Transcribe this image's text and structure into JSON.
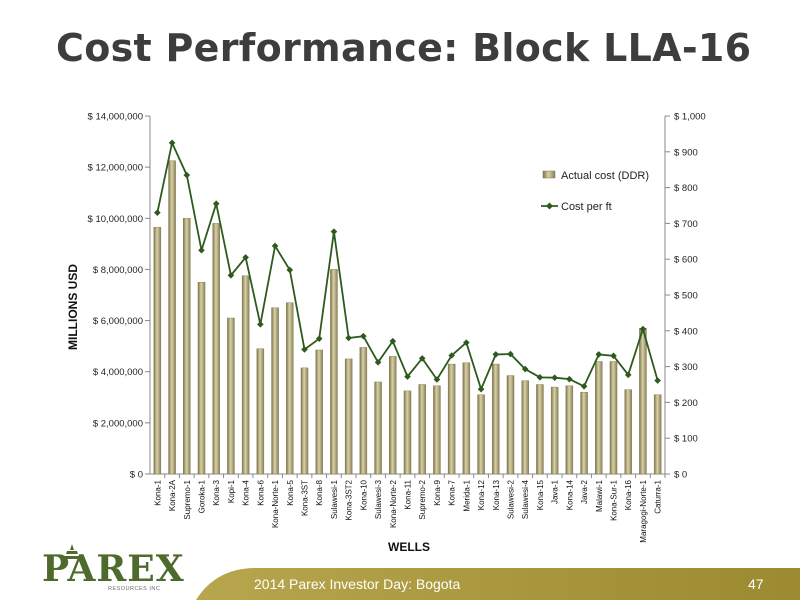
{
  "slide": {
    "title": "Cost Performance: Block LLA-16",
    "footer": "2014 Parex Investor Day: Bogota",
    "page_number": "47"
  },
  "logo": {
    "text": "PAREX",
    "subtext": "RESOURCES INC"
  },
  "colors": {
    "bar": "#9a9060",
    "bar_light": "#d8d2a8",
    "line": "#2e5a1e",
    "title": "#3d3d3d",
    "footer_band": "#a9973a",
    "logo_green": "#4e6b2d"
  },
  "chart_data": {
    "type": "bar",
    "categories": [
      "Kona-1",
      "Kona-2A",
      "Supremo-1",
      "Goroka-1",
      "Kona-3",
      "Kopi-1",
      "Kona-4",
      "Kona-6",
      "Kona-Norte-1",
      "Kona-5",
      "Kona-3ST",
      "Kona-8",
      "Sulawesi-1",
      "Kona-3ST2",
      "Kona-10",
      "Sulawesi-3",
      "Kona-Norte-2",
      "Kona-11",
      "Supremo-2",
      "Kona-9",
      "Kona-7",
      "Merida-1",
      "Kona-12",
      "Kona-13",
      "Sulawesi-2",
      "Sulawesi-4",
      "Kona-15",
      "Java-1",
      "Kona-14",
      "Java-2",
      "Malawi-1",
      "Kona-Sur-1",
      "Kona-16",
      "Maragogi-Norte-1",
      "Caturra-1"
    ],
    "series": [
      {
        "name": "Actual cost (DDR)",
        "axis": "left",
        "type": "bar",
        "values": [
          9650000,
          12250000,
          10000000,
          7500000,
          9800000,
          6100000,
          7750000,
          4900000,
          6500000,
          6700000,
          4150000,
          4850000,
          8000000,
          4500000,
          4950000,
          3600000,
          4600000,
          3250000,
          3500000,
          3450000,
          4300000,
          4350000,
          3100000,
          4300000,
          3850000,
          3650000,
          3500000,
          3400000,
          3450000,
          3200000,
          4400000,
          4400000,
          3300000,
          5700000,
          3100000
        ]
      },
      {
        "name": "Cost per ft",
        "axis": "right",
        "type": "line",
        "values": [
          730,
          925,
          835,
          625,
          755,
          555,
          605,
          418,
          637,
          570,
          348,
          378,
          677,
          380,
          385,
          312,
          371,
          272,
          323,
          264,
          331,
          367,
          237,
          334,
          335,
          293,
          270,
          269,
          265,
          245,
          334,
          330,
          277,
          405,
          261
        ]
      }
    ],
    "ylabel": "MILLIONS     USD",
    "xlabel": "WELLS",
    "ylim": [
      0,
      14000000
    ],
    "y2lim": [
      0,
      1000
    ],
    "yticks": [
      "$ 0",
      "$ 2,000,000",
      "$ 4,000,000",
      "$ 6,000,000",
      "$ 8,000,000",
      "$ 10,000,000",
      "$ 12,000,000",
      "$ 14,000,000"
    ],
    "y2ticks": [
      "$ 0",
      "$ 100",
      "$ 200",
      "$ 300",
      "$ 400",
      "$ 500",
      "$ 600",
      "$ 700",
      "$ 800",
      "$ 900",
      "$ 1,000"
    ],
    "grid": false,
    "legend_position": "top-right"
  }
}
